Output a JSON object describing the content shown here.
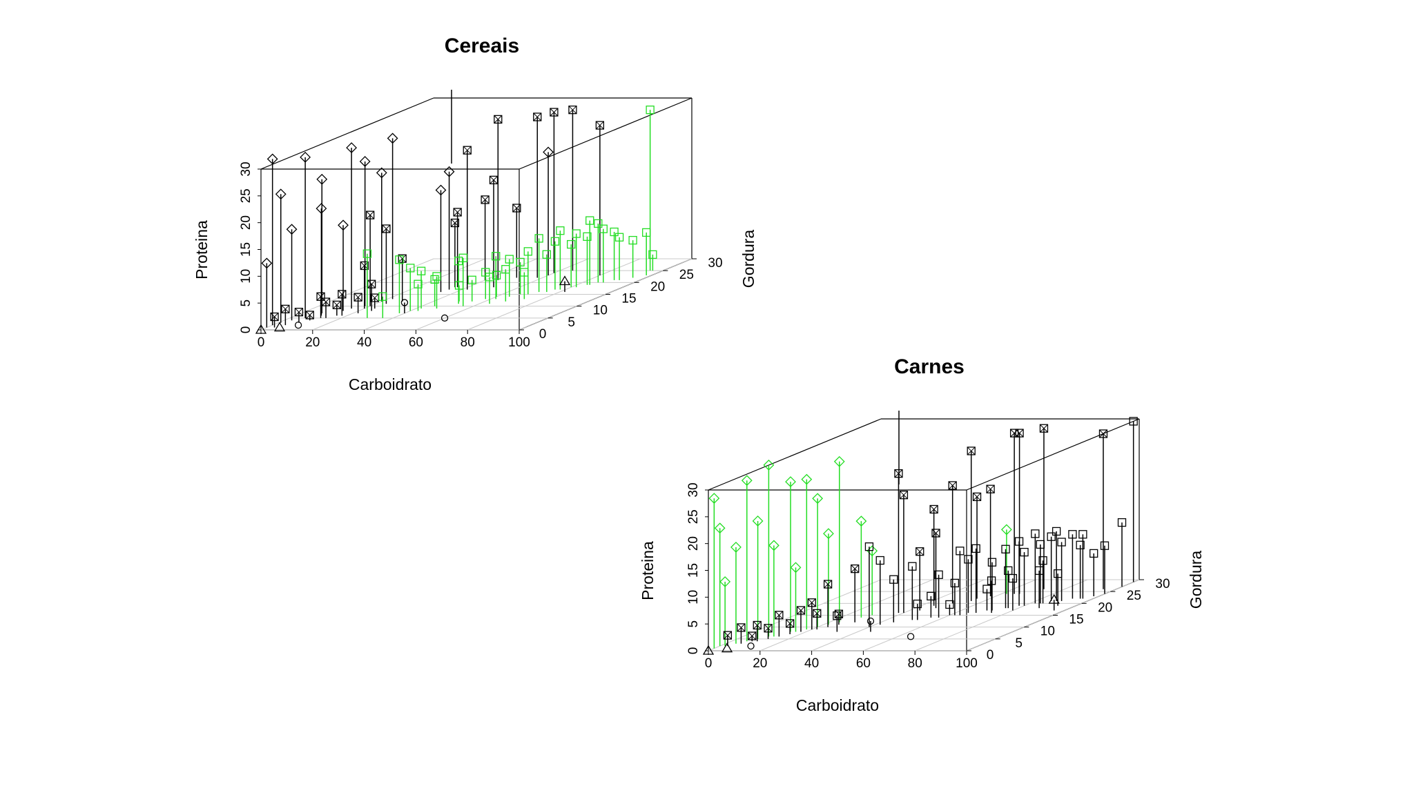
{
  "chart_data": [
    {
      "type": "scatter",
      "title": "Cereais",
      "xlabel": "Carboidrato",
      "ylabel": "Proteina",
      "zlabel": "Gordura",
      "xlim": [
        0,
        100
      ],
      "ylim": [
        0,
        30
      ],
      "zlim": [
        0,
        30
      ],
      "x_ticks": [
        "0",
        "20",
        "40",
        "60",
        "80",
        "100"
      ],
      "y_ticks": [
        "0",
        "5",
        "10",
        "15",
        "20",
        "25",
        "30"
      ],
      "z_ticks": [
        "0",
        "5",
        "10",
        "15",
        "20",
        "25",
        "30"
      ],
      "grid": "on",
      "colors": {
        "default": "#000000",
        "highlight": "#22dd22"
      },
      "groups": [
        {
          "marker": "diamond",
          "color": "#000000",
          "points": [
            {
              "x": 0,
              "y": 31,
              "z": 2
            },
            {
              "x": 1,
              "y": 24,
              "z": 3
            },
            {
              "x": 3,
              "y": 17,
              "z": 4
            },
            {
              "x": 6,
              "y": 30,
              "z": 5
            },
            {
              "x": 8,
              "y": 25,
              "z": 7
            },
            {
              "x": 10,
              "y": 20,
              "z": 6
            },
            {
              "x": 15,
              "y": 30,
              "z": 9
            },
            {
              "x": 18,
              "y": 27,
              "z": 10
            },
            {
              "x": 20,
              "y": 24,
              "z": 12
            },
            {
              "x": 22,
              "y": 30,
              "z": 13
            },
            {
              "x": 14,
              "y": 16,
              "z": 8
            },
            {
              "x": 0,
              "y": 12,
              "z": 1
            },
            {
              "x": 34,
              "y": 19,
              "z": 16
            },
            {
              "x": 35,
              "y": 22,
              "z": 17
            },
            {
              "x": 60,
              "y": 23,
              "z": 23
            }
          ]
        },
        {
          "marker": "boxx",
          "color": "#000000",
          "points": [
            {
              "x": 35,
              "y": 12,
              "z": 18
            },
            {
              "x": 36,
              "y": 14,
              "z": 18
            },
            {
              "x": 40,
              "y": 15,
              "z": 21
            },
            {
              "x": 42,
              "y": 26,
              "z": 17
            },
            {
              "x": 45,
              "y": 30,
              "z": 21
            },
            {
              "x": 50,
              "y": 13,
              "z": 22
            },
            {
              "x": 50,
              "y": 20,
              "z": 18
            },
            {
              "x": 58,
              "y": 30,
              "z": 22
            },
            {
              "x": 60,
              "y": 30,
              "z": 24
            },
            {
              "x": 65,
              "y": 30,
              "z": 25
            },
            {
              "x": 80,
              "y": 28,
              "z": 23
            },
            {
              "x": 20,
              "y": 17,
              "z": 10
            },
            {
              "x": 24,
              "y": 14,
              "z": 11
            },
            {
              "x": 28,
              "y": 8,
              "z": 12
            },
            {
              "x": 20,
              "y": 8,
              "z": 9
            },
            {
              "x": 12,
              "y": 4,
              "z": 5
            },
            {
              "x": 5,
              "y": 3,
              "z": 2
            },
            {
              "x": 8,
              "y": 2,
              "z": 3
            },
            {
              "x": 14,
              "y": 3,
              "z": 5
            },
            {
              "x": 18,
              "y": 4,
              "z": 6
            },
            {
              "x": 22,
              "y": 3,
              "z": 7
            },
            {
              "x": 3,
              "y": 2,
              "z": 1
            },
            {
              "x": 10,
              "y": 1,
              "z": 4
            },
            {
              "x": 25,
              "y": 5,
              "z": 8
            },
            {
              "x": 16,
              "y": 2,
              "z": 6
            },
            {
              "x": 24,
              "y": 2,
              "z": 9
            }
          ]
        },
        {
          "marker": "square",
          "color": "#22dd22",
          "points": [
            {
              "x": 30,
              "y": 12,
              "z": 5
            },
            {
              "x": 38,
              "y": 10,
              "z": 7
            },
            {
              "x": 40,
              "y": 8,
              "z": 8
            },
            {
              "x": 42,
              "y": 7,
              "z": 9
            },
            {
              "x": 43,
              "y": 5,
              "z": 8
            },
            {
              "x": 45,
              "y": 5,
              "z": 10
            },
            {
              "x": 50,
              "y": 3,
              "z": 12
            },
            {
              "x": 52,
              "y": 8,
              "z": 11
            },
            {
              "x": 55,
              "y": 4,
              "z": 12
            },
            {
              "x": 58,
              "y": 5,
              "z": 13
            },
            {
              "x": 60,
              "y": 4,
              "z": 14
            },
            {
              "x": 62,
              "y": 8,
              "z": 13
            },
            {
              "x": 65,
              "y": 7,
              "z": 14
            },
            {
              "x": 67,
              "y": 6,
              "z": 15
            },
            {
              "x": 70,
              "y": 8,
              "z": 15
            },
            {
              "x": 72,
              "y": 10,
              "z": 16
            },
            {
              "x": 75,
              "y": 7,
              "z": 16
            },
            {
              "x": 76,
              "y": 9,
              "z": 17
            },
            {
              "x": 78,
              "y": 11,
              "z": 17
            },
            {
              "x": 80,
              "y": 8,
              "z": 18
            },
            {
              "x": 82,
              "y": 10,
              "z": 18
            },
            {
              "x": 84,
              "y": 9,
              "z": 19
            },
            {
              "x": 85,
              "y": 12,
              "z": 19
            },
            {
              "x": 86,
              "y": 11,
              "z": 20
            },
            {
              "x": 88,
              "y": 10,
              "z": 20
            },
            {
              "x": 90,
              "y": 9,
              "z": 21
            },
            {
              "x": 92,
              "y": 8,
              "z": 21
            },
            {
              "x": 95,
              "y": 7,
              "z": 22
            },
            {
              "x": 98,
              "y": 8,
              "z": 23
            },
            {
              "x": 48,
              "y": 6,
              "z": 9
            },
            {
              "x": 56,
              "y": 9,
              "z": 10
            },
            {
              "x": 64,
              "y": 5,
              "z": 11
            },
            {
              "x": 68,
              "y": 6,
              "z": 12
            },
            {
              "x": 73,
              "y": 5,
              "z": 13
            },
            {
              "x": 36,
              "y": 4,
              "z": 5
            },
            {
              "x": 95,
              "y": 30,
              "z": 25
            },
            {
              "x": 96,
              "y": 3,
              "z": 25
            }
          ]
        },
        {
          "marker": "triangle",
          "color": "#000000",
          "points": [
            {
              "x": 82,
              "y": 2,
              "z": 16
            },
            {
              "x": 0,
              "y": 0,
              "z": 0
            },
            {
              "x": 5,
              "y": 0,
              "z": 1
            }
          ]
        },
        {
          "marker": "circle",
          "color": "#000000",
          "points": [
            {
              "x": 60,
              "y": 0,
              "z": 5
            },
            {
              "x": 40,
              "y": 2,
              "z": 7
            },
            {
              "x": 10,
              "y": 0,
              "z": 2
            }
          ]
        }
      ]
    },
    {
      "type": "scatter",
      "title": "Carnes",
      "xlabel": "Carboidrato",
      "ylabel": "Proteina",
      "zlabel": "Gordura",
      "xlim": [
        0,
        100
      ],
      "ylim": [
        0,
        30
      ],
      "zlim": [
        0,
        30
      ],
      "x_ticks": [
        "0",
        "20",
        "40",
        "60",
        "80",
        "100"
      ],
      "y_ticks": [
        "0",
        "5",
        "10",
        "15",
        "20",
        "25",
        "30"
      ],
      "z_ticks": [
        "0",
        "5",
        "10",
        "15",
        "20",
        "25",
        "30"
      ],
      "grid": "on",
      "colors": {
        "default": "#000000",
        "highlight": "#22dd22"
      },
      "groups": [
        {
          "marker": "diamond",
          "color": "#22dd22",
          "points": [
            {
              "x": 0,
              "y": 28,
              "z": 1
            },
            {
              "x": 0,
              "y": 22,
              "z": 2
            },
            {
              "x": 2,
              "y": 12,
              "z": 2
            },
            {
              "x": 4,
              "y": 18,
              "z": 3
            },
            {
              "x": 6,
              "y": 30,
              "z": 4
            },
            {
              "x": 8,
              "y": 22,
              "z": 5
            },
            {
              "x": 10,
              "y": 32,
              "z": 6
            },
            {
              "x": 12,
              "y": 17,
              "z": 6
            },
            {
              "x": 14,
              "y": 28,
              "z": 8
            },
            {
              "x": 16,
              "y": 12,
              "z": 8
            },
            {
              "x": 18,
              "y": 28,
              "z": 9
            },
            {
              "x": 20,
              "y": 24,
              "z": 10
            },
            {
              "x": 22,
              "y": 17,
              "z": 11
            },
            {
              "x": 24,
              "y": 30,
              "z": 12
            },
            {
              "x": 28,
              "y": 18,
              "z": 14
            },
            {
              "x": 30,
              "y": 12,
              "z": 15
            },
            {
              "x": 62,
              "y": 12,
              "z": 24
            }
          ]
        },
        {
          "marker": "boxx",
          "color": "#000000",
          "points": [
            {
              "x": 38,
              "y": 26,
              "z": 16
            },
            {
              "x": 40,
              "y": 22,
              "z": 16
            },
            {
              "x": 45,
              "y": 18,
              "z": 19
            },
            {
              "x": 50,
              "y": 22,
              "z": 20
            },
            {
              "x": 55,
              "y": 28,
              "z": 21
            },
            {
              "x": 55,
              "y": 19,
              "z": 22
            },
            {
              "x": 58,
              "y": 20,
              "z": 23
            },
            {
              "x": 65,
              "y": 30,
              "z": 24
            },
            {
              "x": 67,
              "y": 30,
              "z": 24
            },
            {
              "x": 72,
              "y": 30,
              "z": 26
            },
            {
              "x": 95,
              "y": 29,
              "z": 26
            },
            {
              "x": 48,
              "y": 14,
              "z": 18
            },
            {
              "x": 44,
              "y": 11,
              "z": 17
            },
            {
              "x": 30,
              "y": 10,
              "z": 12
            },
            {
              "x": 24,
              "y": 8,
              "z": 10
            },
            {
              "x": 20,
              "y": 5,
              "z": 9
            },
            {
              "x": 14,
              "y": 4,
              "z": 6
            },
            {
              "x": 10,
              "y": 3,
              "z": 4
            },
            {
              "x": 6,
              "y": 3,
              "z": 3
            },
            {
              "x": 3,
              "y": 2,
              "z": 2
            },
            {
              "x": 8,
              "y": 1,
              "z": 4
            },
            {
              "x": 12,
              "y": 2,
              "z": 5
            },
            {
              "x": 16,
              "y": 2,
              "z": 7
            },
            {
              "x": 18,
              "y": 4,
              "z": 8
            },
            {
              "x": 22,
              "y": 3,
              "z": 9
            },
            {
              "x": 26,
              "y": 2,
              "z": 11
            }
          ]
        },
        {
          "marker": "square",
          "color": "#000000",
          "points": [
            {
              "x": 32,
              "y": 3,
              "z": 8
            },
            {
              "x": 40,
              "y": 15,
              "z": 10
            },
            {
              "x": 42,
              "y": 12,
              "z": 11
            },
            {
              "x": 45,
              "y": 8,
              "z": 12
            },
            {
              "x": 50,
              "y": 10,
              "z": 13
            },
            {
              "x": 52,
              "y": 3,
              "z": 13
            },
            {
              "x": 55,
              "y": 4,
              "z": 14
            },
            {
              "x": 60,
              "y": 2,
              "z": 15
            },
            {
              "x": 62,
              "y": 6,
              "z": 15
            },
            {
              "x": 65,
              "y": 10,
              "z": 16
            },
            {
              "x": 68,
              "y": 12,
              "z": 16
            },
            {
              "x": 70,
              "y": 4,
              "z": 17
            },
            {
              "x": 72,
              "y": 9,
              "z": 17
            },
            {
              "x": 75,
              "y": 11,
              "z": 18
            },
            {
              "x": 76,
              "y": 7,
              "z": 18
            },
            {
              "x": 78,
              "y": 12,
              "z": 19
            },
            {
              "x": 80,
              "y": 10,
              "z": 19
            },
            {
              "x": 82,
              "y": 13,
              "z": 20
            },
            {
              "x": 84,
              "y": 11,
              "z": 20
            },
            {
              "x": 85,
              "y": 8,
              "z": 20
            },
            {
              "x": 86,
              "y": 12,
              "z": 21
            },
            {
              "x": 88,
              "y": 13,
              "z": 21
            },
            {
              "x": 90,
              "y": 11,
              "z": 21
            },
            {
              "x": 92,
              "y": 12,
              "z": 22
            },
            {
              "x": 95,
              "y": 10,
              "z": 22
            },
            {
              "x": 98,
              "y": 8,
              "z": 23
            },
            {
              "x": 100,
              "y": 9,
              "z": 24
            },
            {
              "x": 58,
              "y": 8,
              "z": 14
            },
            {
              "x": 64,
              "y": 12,
              "z": 15
            },
            {
              "x": 74,
              "y": 6,
              "z": 16
            },
            {
              "x": 80,
              "y": 6,
              "z": 17
            },
            {
              "x": 88,
              "y": 7,
              "z": 18
            },
            {
              "x": 93,
              "y": 6,
              "z": 19
            },
            {
              "x": 96,
              "y": 12,
              "z": 22
            },
            {
              "x": 100,
              "y": 12,
              "z": 27
            },
            {
              "x": 100,
              "y": 30,
              "z": 29
            }
          ]
        },
        {
          "marker": "triangle",
          "color": "#000000",
          "points": [
            {
              "x": 96,
              "y": 2,
              "z": 17
            },
            {
              "x": 0,
              "y": 0,
              "z": 0
            },
            {
              "x": 5,
              "y": 0,
              "z": 1
            }
          ]
        },
        {
          "marker": "circle",
          "color": "#000000",
          "points": [
            {
              "x": 65,
              "y": 0,
              "z": 6
            },
            {
              "x": 45,
              "y": 2,
              "z": 8
            },
            {
              "x": 12,
              "y": 0,
              "z": 2
            }
          ]
        }
      ]
    }
  ]
}
